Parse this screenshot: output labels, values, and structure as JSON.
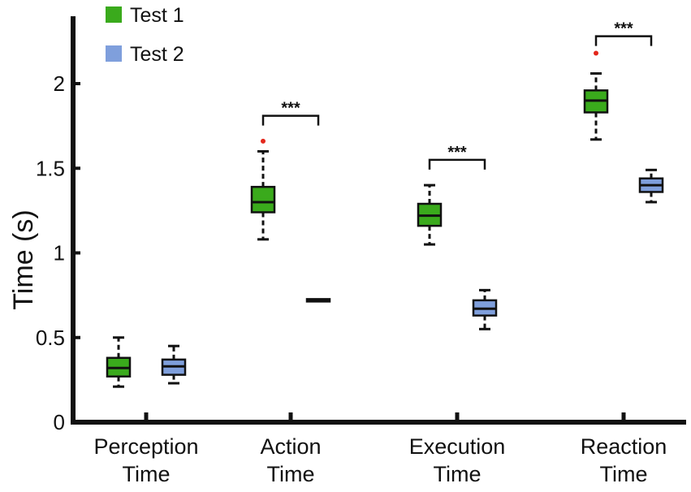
{
  "chart_data": {
    "type": "boxplot",
    "title": "",
    "xlabel": "",
    "ylabel": "Time (s)",
    "ylim": [
      0,
      2.4
    ],
    "yticks": [
      {
        "value": 0,
        "label": "0"
      },
      {
        "value": 0.5,
        "label": "0.5"
      },
      {
        "value": 1,
        "label": "1"
      },
      {
        "value": 1.5,
        "label": "1.5"
      },
      {
        "value": 2,
        "label": "2"
      }
    ],
    "categories": [
      {
        "line1": "Perception",
        "line2": "Time"
      },
      {
        "line1": "Action",
        "line2": "Time"
      },
      {
        "line1": "Execution",
        "line2": "Time"
      },
      {
        "line1": "Reaction",
        "line2": "Time"
      }
    ],
    "series": [
      {
        "name": "Test 1",
        "color": "#3aaa1c",
        "boxes": [
          {
            "min": 0.21,
            "q1": 0.27,
            "median": 0.32,
            "q3": 0.38,
            "max": 0.5,
            "outliers": []
          },
          {
            "min": 1.08,
            "q1": 1.24,
            "median": 1.3,
            "q3": 1.39,
            "max": 1.6,
            "outliers": [
              1.66
            ]
          },
          {
            "min": 1.05,
            "q1": 1.16,
            "median": 1.22,
            "q3": 1.29,
            "max": 1.4,
            "outliers": []
          },
          {
            "min": 1.67,
            "q1": 1.83,
            "median": 1.9,
            "q3": 1.96,
            "max": 2.06,
            "outliers": [
              2.18
            ]
          }
        ]
      },
      {
        "name": "Test 2",
        "color": "#7f9fdc",
        "boxes": [
          {
            "min": 0.23,
            "q1": 0.28,
            "median": 0.33,
            "q3": 0.37,
            "max": 0.45,
            "outliers": []
          },
          {
            "min": 0.72,
            "q1": 0.72,
            "median": 0.72,
            "q3": 0.72,
            "max": 0.72,
            "outliers": []
          },
          {
            "min": 0.55,
            "q1": 0.63,
            "median": 0.67,
            "q3": 0.72,
            "max": 0.78,
            "outliers": []
          },
          {
            "min": 1.3,
            "q1": 1.36,
            "median": 1.4,
            "q3": 1.44,
            "max": 1.49,
            "outliers": []
          }
        ]
      }
    ],
    "significance": [
      {
        "category": 1,
        "label": "***",
        "y": 1.81
      },
      {
        "category": 2,
        "label": "***",
        "y": 1.55
      },
      {
        "category": 3,
        "label": "***",
        "y": 2.28
      }
    ],
    "outlier_color": "#e3271c",
    "legend": {
      "position": "top-left"
    }
  }
}
